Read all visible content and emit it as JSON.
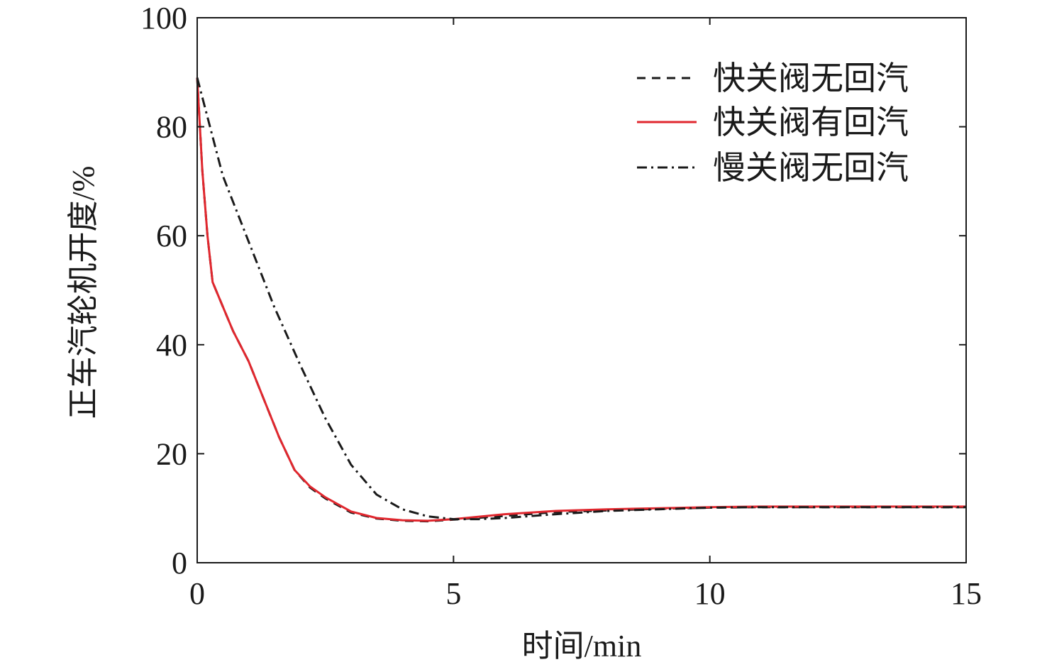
{
  "chart_data": {
    "type": "line",
    "xlabel": "时间/min",
    "ylabel": "正车汽轮机开度/%",
    "xlim": [
      0,
      15
    ],
    "ylim": [
      0,
      100
    ],
    "x_ticks": [
      "0",
      "5",
      "10",
      "15"
    ],
    "y_ticks": [
      "0",
      "20",
      "40",
      "60",
      "80",
      "100"
    ],
    "legend_position": "top-right",
    "series": [
      {
        "name": "快关阀无回汽",
        "color": "#1a1a1a",
        "dash": "dashed",
        "x": [
          0,
          0.1,
          0.2,
          0.3,
          0.5,
          0.7,
          1.0,
          1.3,
          1.6,
          1.9,
          2.2,
          2.5,
          3.0,
          3.5,
          4.0,
          4.5,
          5.0,
          6.0,
          7.0,
          8.0,
          9.0,
          10.0,
          11.0,
          12.0,
          13.0,
          14.0,
          15.0
        ],
        "y": [
          89,
          72,
          60,
          51.5,
          47,
          42.5,
          37,
          30,
          23,
          17,
          13.8,
          11.8,
          9.2,
          8.1,
          7.7,
          7.6,
          7.9,
          8.6,
          9.3,
          9.6,
          9.9,
          10.1,
          10.2,
          10.2,
          10.2,
          10.2,
          10.2
        ]
      },
      {
        "name": "快关阀有回汽",
        "color": "#e0272e",
        "dash": "solid",
        "x": [
          0,
          0.1,
          0.2,
          0.3,
          0.5,
          0.7,
          1.0,
          1.3,
          1.6,
          1.9,
          2.2,
          2.5,
          3.0,
          3.5,
          4.0,
          4.5,
          5.0,
          6.0,
          7.0,
          8.0,
          9.0,
          10.0,
          11.0,
          12.0,
          13.0,
          14.0,
          15.0
        ],
        "y": [
          89,
          72,
          60,
          51.5,
          47,
          42.5,
          37,
          30,
          23,
          17,
          14,
          12,
          9.4,
          8.2,
          7.8,
          7.7,
          8.0,
          8.9,
          9.5,
          9.8,
          10.0,
          10.2,
          10.3,
          10.3,
          10.3,
          10.3,
          10.3
        ]
      },
      {
        "name": "慢关阀无回汽",
        "color": "#1a1a1a",
        "dash": "dashdot",
        "x": [
          0,
          0.5,
          1.0,
          1.5,
          2.0,
          2.5,
          3.0,
          3.5,
          4.0,
          4.5,
          5.0,
          5.5,
          6.0,
          7.0,
          8.0,
          9.0,
          10.0,
          11.0,
          12.0,
          13.0,
          14.0,
          15.0
        ],
        "y": [
          89,
          71,
          59,
          47,
          36.5,
          26.5,
          18,
          12.5,
          9.8,
          8.5,
          8.0,
          8.0,
          8.2,
          8.9,
          9.5,
          9.8,
          10.1,
          10.2,
          10.2,
          10.2,
          10.2,
          10.2
        ]
      }
    ]
  }
}
